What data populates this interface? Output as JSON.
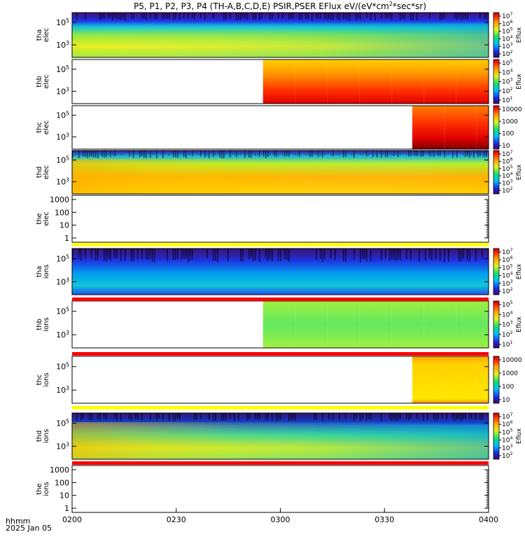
{
  "title": "P5, P1, P2, P3, P4 (TH-A,B,C,D,E) PSIR,PSER EFlux eV/(eV*cm",
  "title_sup": "2",
  "title_tail": "*sec*sr)",
  "footer": {
    "line1": "hhmm",
    "line2": "2025 Jan 05"
  },
  "chart_data": {
    "type": "heatmap",
    "x_ticks": [
      "0200",
      "0230",
      "0300",
      "0330",
      "0400"
    ],
    "x_range": [
      "0200",
      "0400"
    ],
    "panels": [
      {
        "id": "tha-elec",
        "ylabel": [
          "tha",
          "elec"
        ],
        "yticks": [
          "10^5",
          "10^3"
        ],
        "colorbar": {
          "label": "Eflux",
          "ticks": [
            "10^7",
            "10^6",
            "10^5",
            "10^4",
            "10^3",
            "10^2"
          ]
        }
      },
      {
        "id": "thb-elec",
        "ylabel": [
          "thb",
          "elec"
        ],
        "yticks": [
          "10^5",
          "10^3"
        ],
        "data_start": "0255",
        "colorbar": {
          "label": "Eflux",
          "ticks": [
            "10^5",
            "10^4",
            "10^3",
            "10^2",
            "10^1"
          ]
        }
      },
      {
        "id": "thc-elec",
        "ylabel": [
          "thc",
          "elec"
        ],
        "yticks": [
          "10^5",
          "10^3"
        ],
        "data_start": "0338",
        "colorbar": {
          "label": "",
          "ticks": [
            "10000",
            "1000",
            "100",
            "10"
          ]
        }
      },
      {
        "id": "thd-elec",
        "ylabel": [
          "thd",
          "elec"
        ],
        "yticks": [
          "10^5",
          "10^3"
        ],
        "colorbar": {
          "label": "Eflux",
          "ticks": [
            "10^7",
            "10^6",
            "10^5",
            "10^4",
            "10^3",
            "10^2"
          ]
        }
      },
      {
        "id": "the-elec",
        "ylabel": [
          "the",
          "elec"
        ],
        "yticks": [
          "1000",
          "100",
          "10",
          "1"
        ],
        "empty": true
      },
      {
        "id": "tha-ions",
        "ylabel": [
          "tha",
          "ions"
        ],
        "yticks": [
          "10^5",
          "10^3"
        ],
        "colorbar": {
          "label": "Eflux",
          "ticks": [
            "10^7",
            "10^6",
            "10^5",
            "10^4",
            "10^3",
            "10^2"
          ]
        }
      },
      {
        "id": "thb-ions",
        "ylabel": [
          "thb",
          "ions"
        ],
        "yticks": [
          "10^5",
          "10^3"
        ],
        "data_start": "0255",
        "colorbar": {
          "label": "Eflux",
          "ticks": [
            "10^5",
            "10^4",
            "10^3",
            "10^2",
            "10^1"
          ]
        }
      },
      {
        "id": "thc-ions",
        "ylabel": [
          "thc",
          "ions"
        ],
        "yticks": [
          "10^5",
          "10^3"
        ],
        "data_start": "0338",
        "colorbar": {
          "label": "",
          "ticks": [
            "10000",
            "1000",
            "100",
            "10"
          ]
        }
      },
      {
        "id": "thd-ions",
        "ylabel": [
          "thd",
          "ions"
        ],
        "yticks": [
          "10^5",
          "10^3"
        ],
        "colorbar": {
          "label": "Eflux",
          "ticks": [
            "10^7",
            "10^6",
            "10^5",
            "10^4",
            "10^3",
            "10^2"
          ]
        }
      },
      {
        "id": "the-ions",
        "ylabel": [
          "the",
          "ions"
        ],
        "yticks": [
          "1000",
          "100",
          "10",
          "1"
        ],
        "empty": true
      }
    ],
    "colors": {
      "yellow_bar": "#ffff00",
      "red_bar": "#ff0000"
    }
  }
}
